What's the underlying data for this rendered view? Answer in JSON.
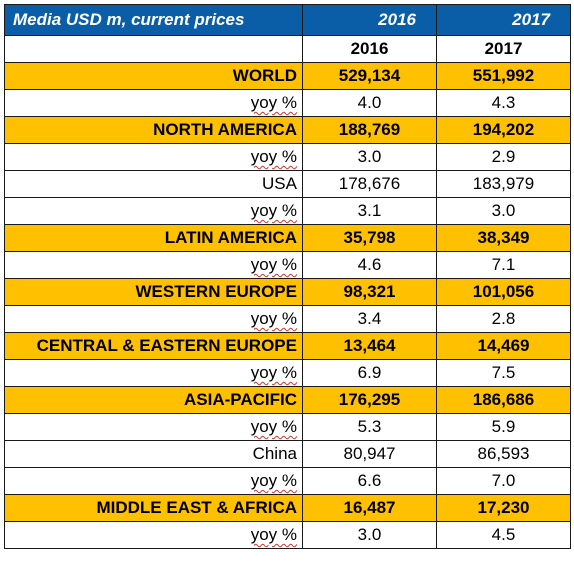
{
  "table": {
    "title": "Media USD m, current prices",
    "title_years": [
      "2016",
      "2017"
    ],
    "subheader_years": [
      "2016",
      "2017"
    ],
    "rows": [
      {
        "type": "region",
        "label": "WORLD",
        "v2016": "529,134",
        "v2017": "551,992"
      },
      {
        "type": "yoy",
        "label": "yoy %",
        "v2016": "4.0",
        "v2017": "4.3"
      },
      {
        "type": "region",
        "label": "NORTH AMERICA",
        "v2016": "188,769",
        "v2017": "194,202"
      },
      {
        "type": "yoy",
        "label": "yoy %",
        "v2016": "3.0",
        "v2017": "2.9"
      },
      {
        "type": "country",
        "label": "USA",
        "v2016": "178,676",
        "v2017": "183,979"
      },
      {
        "type": "yoy",
        "label": "yoy %",
        "v2016": "3.1",
        "v2017": "3.0"
      },
      {
        "type": "region",
        "label": "LATIN AMERICA",
        "v2016": "35,798",
        "v2017": "38,349"
      },
      {
        "type": "yoy",
        "label": "yoy %",
        "v2016": "4.6",
        "v2017": "7.1"
      },
      {
        "type": "region",
        "label": "WESTERN EUROPE",
        "v2016": "98,321",
        "v2017": "101,056"
      },
      {
        "type": "yoy",
        "label": "yoy %",
        "v2016": "3.4",
        "v2017": "2.8"
      },
      {
        "type": "region",
        "label": "CENTRAL & EASTERN EUROPE",
        "v2016": "13,464",
        "v2017": "14,469"
      },
      {
        "type": "yoy",
        "label": "yoy %",
        "v2016": "6.9",
        "v2017": "7.5"
      },
      {
        "type": "region",
        "label": "ASIA-PACIFIC",
        "v2016": "176,295",
        "v2017": "186,686"
      },
      {
        "type": "yoy",
        "label": "yoy %",
        "v2016": "5.3",
        "v2017": "5.9"
      },
      {
        "type": "country",
        "label": "China",
        "v2016": "80,947",
        "v2017": "86,593"
      },
      {
        "type": "yoy",
        "label": "yoy %",
        "v2016": "6.6",
        "v2017": "7.0"
      },
      {
        "type": "region",
        "label": "MIDDLE EAST & AFRICA",
        "v2016": "16,487",
        "v2017": "17,230"
      },
      {
        "type": "yoy",
        "label": "yoy %",
        "v2016": "3.0",
        "v2017": "4.5"
      }
    ]
  },
  "colors": {
    "title_background": "#0a5ea8",
    "title_text": "#ffffff",
    "region_background": "#ffc000",
    "spellcheck_underline": "#d0342c"
  }
}
